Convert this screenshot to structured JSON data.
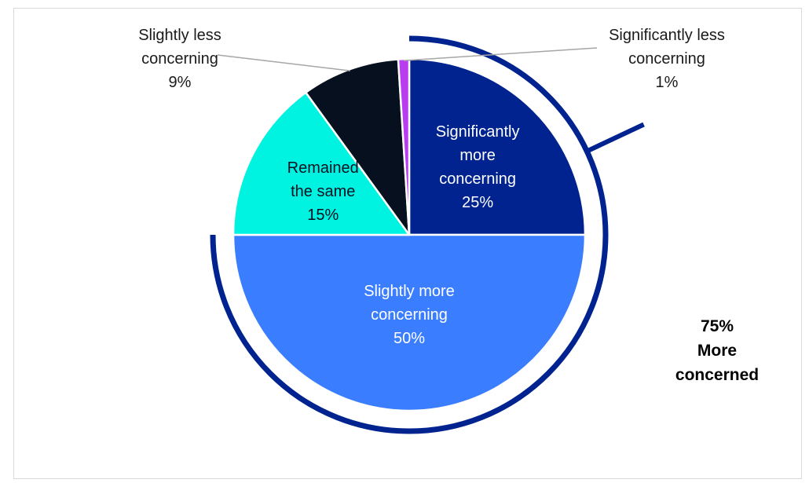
{
  "chart_data": {
    "type": "pie",
    "title": "",
    "slices": [
      {
        "label_lines": [
          "Significantly",
          "more",
          "concerning"
        ],
        "value_text": "25%",
        "value": 25,
        "color": "#00238F",
        "label_color": "#ffffff"
      },
      {
        "label_lines": [
          "Slightly more",
          "concerning"
        ],
        "value_text": "50%",
        "value": 50,
        "color": "#3B7DFF",
        "label_color": "#ffffff"
      },
      {
        "label_lines": [
          "Remained",
          "the same"
        ],
        "value_text": "15%",
        "value": 15,
        "color": "#00F2E0",
        "label_color": "#0a1020"
      },
      {
        "label_lines": [
          "Slightly less",
          "concerning"
        ],
        "value_text": "9%",
        "value": 9,
        "color": "#06101F",
        "label_color": "#1a1a1a"
      },
      {
        "label_lines": [
          "Significantly less",
          "concerning"
        ],
        "value_text": "1%",
        "value": 1,
        "color": "#B83CF0",
        "label_color": "#1a1a1a"
      }
    ],
    "highlight": {
      "value_text": "75%",
      "label_lines": [
        "More",
        "concerned"
      ],
      "covers": [
        "Significantly more concerning",
        "Slightly more concerning"
      ],
      "color": "#00238F"
    }
  }
}
